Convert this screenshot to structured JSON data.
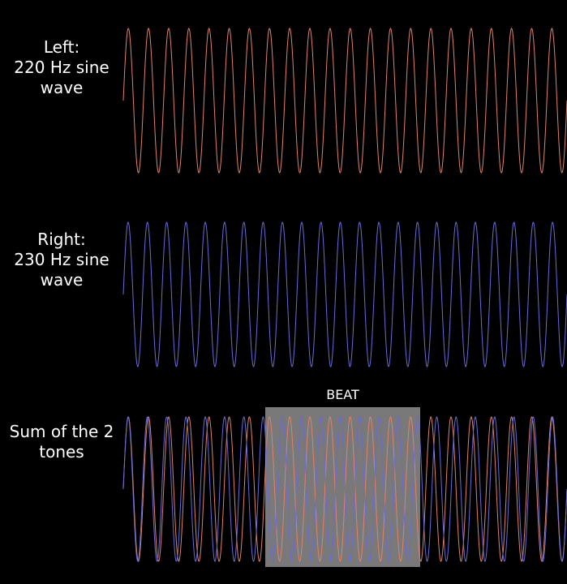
{
  "labels": {
    "left": [
      "Left:",
      "220 Hz sine",
      "wave"
    ],
    "right": [
      "Right:",
      "230 Hz sine",
      "wave"
    ],
    "sum": [
      "Sum of the 2",
      "tones"
    ],
    "beat": "BEAT"
  },
  "colors": {
    "background": "#000000",
    "left_wave": "#e0826a",
    "right_wave": "#6a6ad8",
    "beat_box": "#808080"
  },
  "waves": {
    "left_cycles": 22,
    "right_cycles": 23
  }
}
